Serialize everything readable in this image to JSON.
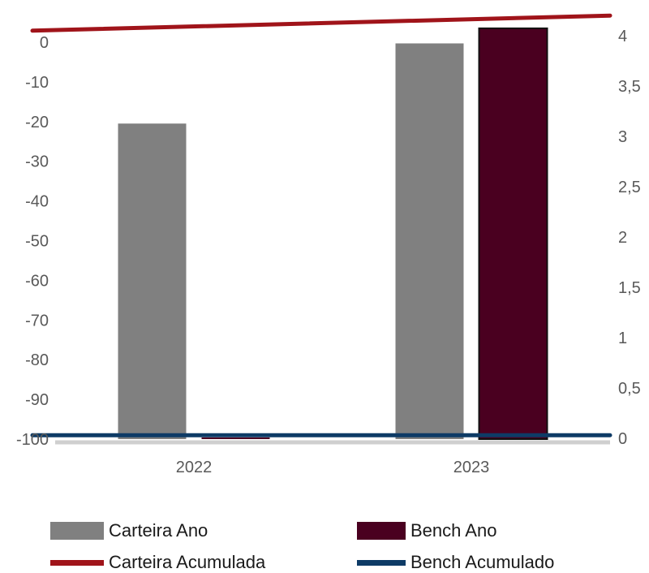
{
  "chart_data": {
    "type": "bar",
    "categories": [
      "2022",
      "2023"
    ],
    "series": [
      {
        "name": "Carteira Ano",
        "kind": "bar",
        "axis": "left",
        "color": "#808080",
        "values": [
          -20.5,
          -0.3
        ]
      },
      {
        "name": "Bench Ano",
        "kind": "bar",
        "axis": "left",
        "color": "#4a0020",
        "values": [
          -100,
          3.5
        ]
      },
      {
        "name": "Carteira Acumulada",
        "kind": "line",
        "axis": "right",
        "color": "#a0141a",
        "values": [
          4.05,
          4.2
        ]
      },
      {
        "name": "Bench Acumulado",
        "kind": "line",
        "axis": "right",
        "color": "#0e3b66",
        "values": [
          0.03,
          0.03
        ]
      }
    ],
    "y_left": {
      "ylim": [
        -100,
        0
      ],
      "ticks": [
        "0",
        "-10",
        "-20",
        "-30",
        "-40",
        "-50",
        "-60",
        "-70",
        "-80",
        "-90",
        "-100"
      ]
    },
    "y_right": {
      "ylim": [
        0,
        4
      ],
      "ticks": [
        "4",
        "3,5",
        "3",
        "2,5",
        "2",
        "1,5",
        "1",
        "0,5",
        "0"
      ]
    },
    "xlabel": "",
    "ylabel": "",
    "legend": {
      "position": "bottom",
      "entries": [
        "Carteira Ano",
        "Bench Ano",
        "Carteira Acumulada",
        "Bench Acumulado"
      ]
    },
    "grid": false
  }
}
